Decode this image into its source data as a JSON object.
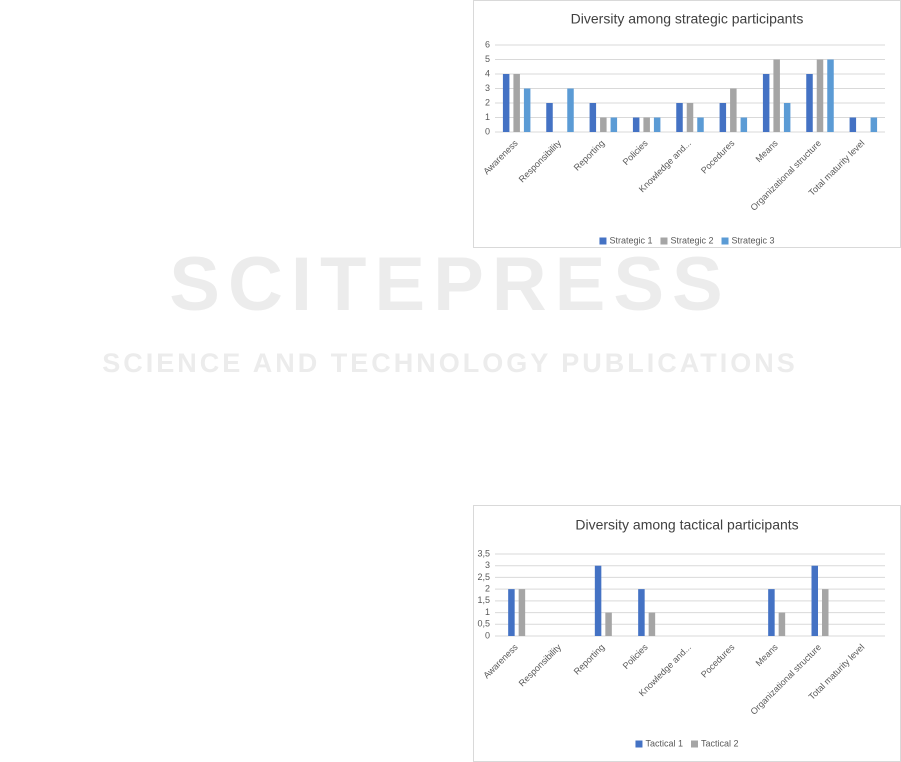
{
  "watermark": {
    "title": "SCITEPRESS",
    "subtitle": "SCIENCE AND TECHNOLOGY PUBLICATIONS"
  },
  "chart_data": [
    {
      "type": "bar",
      "title": "Diversity among strategic participants",
      "categories": [
        "Awareness",
        "Responsibility",
        "Reporting",
        "Policies",
        "Knowledge and...",
        "Pocedures",
        "Means",
        "Organizational structure",
        "Total maturity level"
      ],
      "series": [
        {
          "name": "Strategic 1",
          "color": "#4472c4",
          "values": [
            4,
            2,
            2,
            1,
            2,
            2,
            4,
            4,
            1
          ]
        },
        {
          "name": "Strategic 2",
          "color": "#a5a5a5",
          "values": [
            4,
            0,
            1,
            1,
            2,
            3,
            5,
            5,
            0
          ]
        },
        {
          "name": "Strategic 3",
          "color": "#5b9bd5",
          "values": [
            3,
            3,
            1,
            1,
            1,
            1,
            2,
            5,
            1
          ]
        }
      ],
      "ylim": [
        0,
        6
      ],
      "yticks": [
        0,
        1,
        2,
        3,
        4,
        5,
        6
      ],
      "grid": true,
      "legend": "bottom"
    },
    {
      "type": "bar",
      "title": "Diversity among tactical participants",
      "categories": [
        "Awareness",
        "Responsibility",
        "Reporting",
        "Policies",
        "Knowledge and...",
        "Pocedures",
        "Means",
        "Organizational structure",
        "Total maturity level"
      ],
      "series": [
        {
          "name": "Tactical 1",
          "color": "#4472c4",
          "values": [
            2,
            0,
            3,
            2,
            0,
            0,
            2,
            3,
            0
          ]
        },
        {
          "name": "Tactical 2",
          "color": "#a5a5a5",
          "values": [
            2,
            0,
            1,
            1,
            0,
            0,
            1,
            2,
            0
          ]
        }
      ],
      "ylim": [
        0,
        3.5
      ],
      "yticks": [
        0,
        {
          "value": 0.5,
          "label": "0,5"
        },
        1,
        {
          "value": 1.5,
          "label": "1,5"
        },
        2,
        {
          "value": 2.5,
          "label": "2,5"
        },
        3,
        {
          "value": 3.5,
          "label": "3,5"
        }
      ],
      "grid": true,
      "legend": "bottom"
    }
  ]
}
